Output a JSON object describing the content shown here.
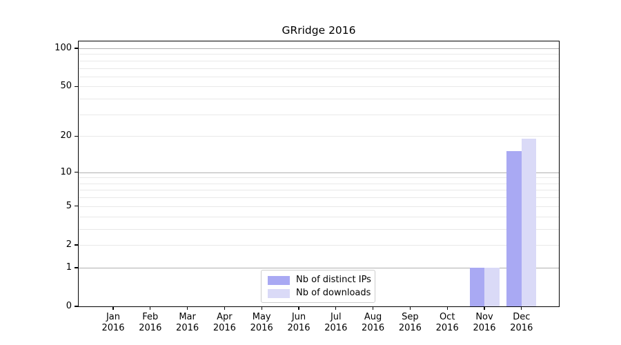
{
  "chart_data": {
    "type": "bar",
    "title": "GRridge 2016",
    "x_categories": [
      "Jan",
      "Feb",
      "Mar",
      "Apr",
      "May",
      "Jun",
      "Jul",
      "Aug",
      "Sep",
      "Oct",
      "Nov",
      "Dec"
    ],
    "x_year": "2016",
    "series": [
      {
        "name": "Nb of distinct IPs",
        "color": "#a9a9f3",
        "values": [
          0,
          0,
          0,
          0,
          0,
          0,
          0,
          0,
          0,
          0,
          1,
          15
        ]
      },
      {
        "name": "Nb of downloads",
        "color": "#dadaf7",
        "values": [
          0,
          0,
          0,
          0,
          0,
          0,
          0,
          0,
          0,
          0,
          1,
          19
        ]
      }
    ],
    "y_axis": {
      "scale": "log1p",
      "ylim": [
        0,
        115
      ],
      "labeled_ticks": [
        0,
        1,
        2,
        5,
        10,
        20,
        50,
        100
      ],
      "major_gridlines": [
        1,
        10,
        100
      ],
      "minor_gridlines": [
        2,
        3,
        4,
        5,
        6,
        7,
        8,
        9,
        20,
        30,
        40,
        50,
        60,
        70,
        80,
        90
      ]
    },
    "legend_position": "bottom-center",
    "grid": true,
    "colors": {
      "major_grid": "#b0b0b0",
      "minor_grid": "#e8e8e8",
      "axis": "#000000",
      "background": "#ffffff"
    }
  }
}
